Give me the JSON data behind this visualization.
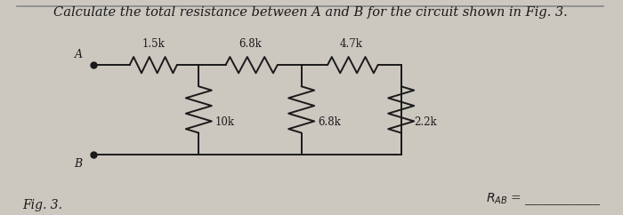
{
  "title": "Calculate the total resistance between A and B for the circuit shown in Fig. 3.",
  "fig_label": "Fig. 3.",
  "node_A_label": "A",
  "node_B_label": "B",
  "r1_label": "1.5k",
  "r2_label": "6.8k",
  "r3_label": "4.7k",
  "r4_label": "10k",
  "r5_label": "6.8k",
  "r6_label": "2.2k",
  "background_color": "#ccc8c0",
  "line_color": "#1a1a1a",
  "text_color": "#1a1a1a",
  "title_fontsize": 10.5,
  "label_fontsize": 8.5,
  "xA": 0.13,
  "xJ1": 0.31,
  "xJ2": 0.485,
  "xJ3": 0.655,
  "yTop": 0.7,
  "yBot": 0.28,
  "border_color": "#888888"
}
